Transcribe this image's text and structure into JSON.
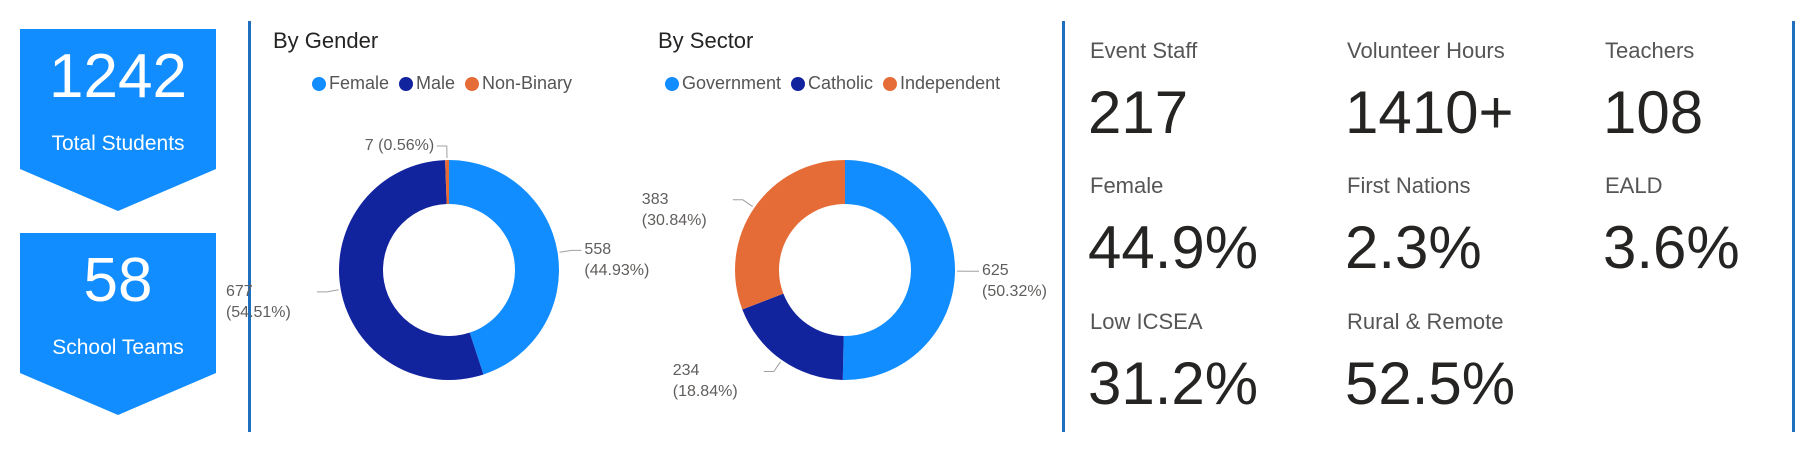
{
  "kpis": [
    {
      "value": "1242",
      "label": "Total Students"
    },
    {
      "value": "58",
      "label": "School Teams"
    }
  ],
  "chart_data": [
    {
      "type": "donut",
      "title": "By Gender",
      "categories": [
        "Female",
        "Male",
        "Non-Binary"
      ],
      "values": [
        558,
        677,
        7
      ],
      "value_labels": [
        "558 (44.93%)",
        "677 (54.51%)",
        "7 (0.56%)"
      ],
      "colors": [
        "#118DFF",
        "#12239E",
        "#E66C37"
      ]
    },
    {
      "type": "donut",
      "title": "By Sector",
      "categories": [
        "Government",
        "Catholic",
        "Independent"
      ],
      "values": [
        625,
        234,
        383
      ],
      "value_labels": [
        "625 (50.32%)",
        "234 (18.84%)",
        "383 (30.84%)"
      ],
      "colors": [
        "#118DFF",
        "#12239E",
        "#E66C37"
      ]
    }
  ],
  "stats": [
    {
      "label": "Event Staff",
      "value": "217"
    },
    {
      "label": "Volunteer Hours",
      "value": "1410+"
    },
    {
      "label": "Teachers",
      "value": "108"
    },
    {
      "label": "Female",
      "value": "44.9%"
    },
    {
      "label": "First Nations",
      "value": "2.3%"
    },
    {
      "label": "EALD",
      "value": "3.6%"
    },
    {
      "label": "Low ICSEA",
      "value": "31.2%"
    },
    {
      "label": "Rural & Remote",
      "value": "52.5%"
    }
  ]
}
